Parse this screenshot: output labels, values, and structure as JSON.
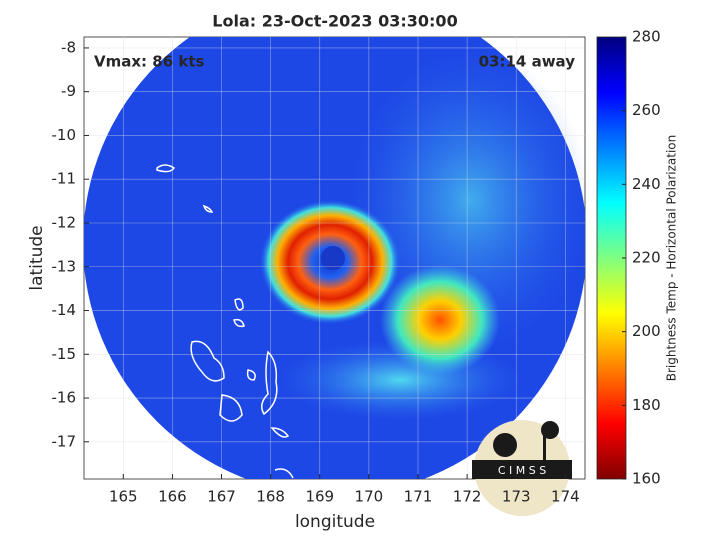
{
  "chart_data": {
    "type": "image",
    "title": "Lola: 23-Oct-2023 03:30:00",
    "annotations": [
      "Vmax: 86 kts",
      "03:14 away"
    ],
    "xlabel": "longitude",
    "ylabel": "latitude",
    "xlim": [
      164.2,
      174.4
    ],
    "xticks": [
      165,
      166,
      167,
      168,
      169,
      170,
      171,
      172,
      173,
      174
    ],
    "ylim": [
      -17.85,
      -7.75
    ],
    "yticks": [
      -17,
      -16,
      -15,
      -14,
      -13,
      -12,
      -11,
      -10,
      -9,
      -8
    ],
    "grid": true,
    "colormap": "jet",
    "colorbar": {
      "label": "Brightness Temp - Horizontal Polarization",
      "lim": [
        160,
        280
      ],
      "ticks": [
        160,
        180,
        200,
        220,
        240,
        260,
        280
      ]
    },
    "logo_text": "C I M S S"
  }
}
